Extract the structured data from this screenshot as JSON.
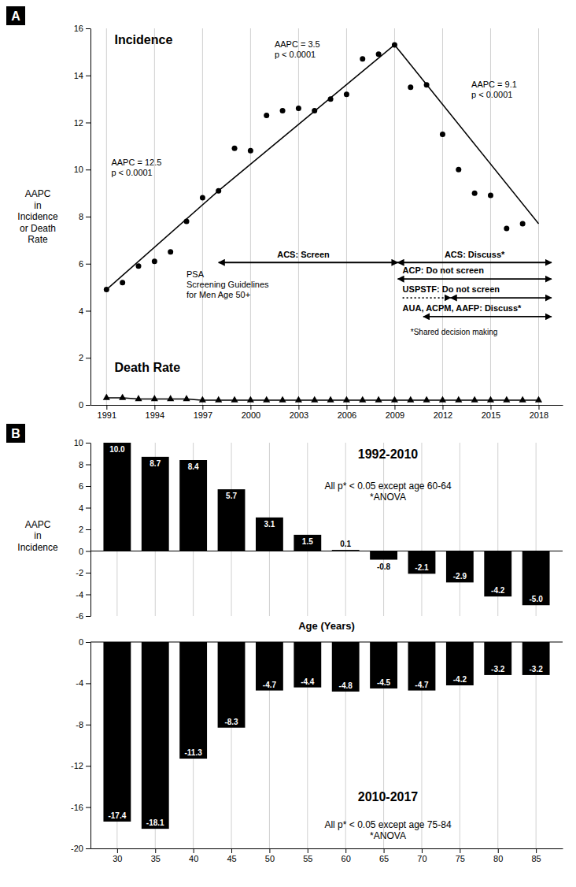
{
  "chart_data": [
    {
      "type": "line",
      "panel_label": "A",
      "ylabel": "AAPC\nin\nIncidence\nor Death\nRate",
      "x": [
        1991,
        1992,
        1993,
        1994,
        1995,
        1996,
        1997,
        1998,
        1999,
        2000,
        2001,
        2002,
        2003,
        2004,
        2005,
        2006,
        2007,
        2008,
        2009,
        2010,
        2011,
        2012,
        2013,
        2014,
        2015,
        2016,
        2017,
        2018
      ],
      "series": [
        {
          "type": "line",
          "color": "#000000",
          "x": [
            1991,
            1998
          ],
          "values": [
            4.9,
            9.1
          ]
        },
        {
          "type": "line",
          "color": "#000000",
          "x": [
            1998,
            2009
          ],
          "values": [
            9.1,
            15.3
          ]
        },
        {
          "type": "line",
          "color": "#000000",
          "x": [
            2009,
            2018
          ],
          "values": [
            15.3,
            7.7
          ]
        },
        {
          "type": "scatter",
          "marker": "circle",
          "color": "#000000",
          "values": [
            4.9,
            5.2,
            5.9,
            6.1,
            6.5,
            7.8,
            8.8,
            9.1,
            10.9,
            10.8,
            12.3,
            12.5,
            12.6,
            12.5,
            13.0,
            13.2,
            14.7,
            14.9,
            15.3,
            13.5,
            13.6,
            11.5,
            10.0,
            9.0,
            8.9,
            7.5,
            7.7,
            null
          ]
        },
        {
          "type": "line",
          "marker": "triangle",
          "color": "#000000",
          "values": [
            0.3,
            0.3,
            0.25,
            0.25,
            0.25,
            0.25,
            0.2,
            0.2,
            0.2,
            0.2,
            0.2,
            0.2,
            0.2,
            0.2,
            0.2,
            0.2,
            0.2,
            0.2,
            0.2,
            0.2,
            0.2,
            0.2,
            0.2,
            0.2,
            0.2,
            0.2,
            0.2,
            0.2
          ]
        }
      ],
      "annotations": [
        "AAPC = 12.5\np < 0.0001",
        "AAPC = 3.5\np < 0.0001",
        "AAPC = 9.1\np < 0.0001",
        "Incidence",
        "Death Rate",
        "PSA\nScreening Guidelines\nfor Men Age 50+",
        "ACS: Screen",
        "ACS: Discuss*",
        "ACP: Do not screen",
        "USPSTF: Do not screen",
        "AUA, ACPM, AAFP: Discuss*",
        "*Shared decision making"
      ],
      "xlim": [
        1990.0,
        2019.5
      ],
      "xticks": [
        1991,
        1994,
        1997,
        2000,
        2003,
        2006,
        2009,
        2012,
        2015,
        2018
      ],
      "ylim": [
        0,
        16
      ],
      "yticks": [
        0,
        2,
        4,
        6,
        8,
        10,
        12,
        14,
        16
      ],
      "grid": "x"
    },
    {
      "type": "bar",
      "panel_label": "B",
      "title": "1992-2010",
      "subtitle": "All p* < 0.05 except age 60-64\n*ANOVA",
      "xlabel": "Age (Years)",
      "ylabel": "AAPC\nin\nIncidence",
      "x": [
        30,
        35,
        40,
        45,
        50,
        55,
        60,
        65,
        70,
        75,
        80,
        85
      ],
      "values": [
        10.0,
        8.7,
        8.4,
        5.7,
        3.1,
        1.5,
        0.1,
        -0.8,
        -2.1,
        -2.9,
        -4.2,
        -5.0
      ],
      "value_labels": [
        "10.0",
        "8.7",
        "8.4",
        "5.7",
        "3.1",
        "1.5",
        "0.1",
        "-0.8",
        "-2.1",
        "-2.9",
        "-4.2",
        "-5.0"
      ],
      "data_labels": true,
      "color": "#000000",
      "xlim": [
        26.5,
        88.5
      ],
      "ylim": [
        -6,
        10
      ],
      "yticks": [
        -6,
        -4,
        -2,
        0,
        2,
        4,
        6,
        8,
        10
      ],
      "tick_labels": "y",
      "grid": "x"
    },
    {
      "type": "bar",
      "title": "2010-2017",
      "subtitle": "All p* < 0.05 except age 75-84\n*ANOVA",
      "x": [
        30,
        35,
        40,
        45,
        50,
        55,
        60,
        65,
        70,
        75,
        80,
        85
      ],
      "values": [
        -17.4,
        -18.1,
        -11.3,
        -8.3,
        -4.7,
        -4.4,
        -4.8,
        -4.5,
        -4.7,
        -4.2,
        -3.2,
        -3.2
      ],
      "value_labels": [
        "-17.4",
        "-18.1",
        "-11.3",
        "-8.3",
        "-4.7",
        "-4.4",
        "-4.8",
        "-4.5",
        "-4.7",
        "-4.2",
        "-3.2",
        "-3.2"
      ],
      "data_labels": true,
      "color": "#000000",
      "xlim": [
        26.5,
        88.5
      ],
      "xticks": [
        30,
        35,
        40,
        45,
        50,
        55,
        60,
        65,
        70,
        75,
        80,
        85
      ],
      "ylim": [
        -20,
        0
      ],
      "yticks": [
        -20,
        -16,
        -12,
        -8,
        -4,
        0
      ],
      "grid": "x"
    }
  ]
}
